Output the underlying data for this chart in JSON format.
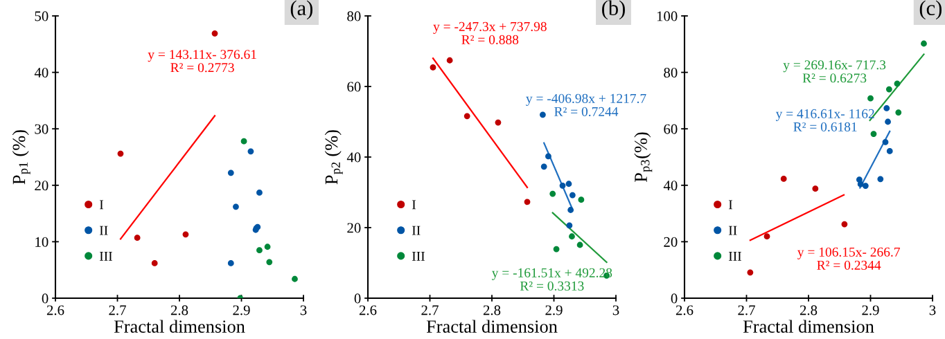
{
  "chart_data": [
    {
      "type": "scatter",
      "title": "(a)",
      "xlabel": "Fractal dimension",
      "ylabel": "P$_{p1}$ (%)",
      "xlim": [
        2.6,
        3
      ],
      "ylim": [
        0,
        50
      ],
      "xticks": [
        2.6,
        2.7,
        2.8,
        2.9,
        3
      ],
      "yticks": [
        0,
        10,
        20,
        30,
        40,
        50
      ],
      "legend": "bottom left",
      "grid": false,
      "series": [
        {
          "name": "I",
          "color": "#c00000",
          "x": [
            2.705,
            2.732,
            2.76,
            2.81,
            2.857
          ],
          "values": [
            25.6,
            10.7,
            6.2,
            11.3,
            46.9
          ]
        },
        {
          "name": "II",
          "color": "#0055a5",
          "x": [
            2.915,
            2.883,
            2.929,
            2.891,
            2.923,
            2.924,
            2.926,
            2.883
          ],
          "values": [
            26.0,
            22.2,
            18.7,
            16.2,
            12.1,
            12.4,
            12.6,
            6.2
          ]
        },
        {
          "name": "III",
          "color": "#00883a",
          "x": [
            2.904,
            2.942,
            2.929,
            2.945,
            2.986,
            2.898
          ],
          "values": [
            27.8,
            9.1,
            8.5,
            6.4,
            3.4,
            0
          ]
        },
        {
          "type": "line",
          "name": "y = 143.11x- 376.61\nR² = 0.2773",
          "color": "#ff0000",
          "x": [
            2.705,
            2.857
          ],
          "values": [
            10.5,
            32.3
          ]
        }
      ]
    },
    {
      "type": "scatter",
      "title": "(b)",
      "xlabel": "Fractal dimension",
      "ylabel": "P$_{p2}$ (%)",
      "xlim": [
        2.6,
        3
      ],
      "ylim": [
        0,
        80
      ],
      "xticks": [
        2.6,
        2.7,
        2.8,
        2.9,
        3
      ],
      "yticks": [
        0,
        20,
        40,
        60,
        80
      ],
      "legend": "bottom left",
      "grid": false,
      "series": [
        {
          "name": "I",
          "color": "#c00000",
          "x": [
            2.705,
            2.732,
            2.76,
            2.81,
            2.857
          ],
          "values": [
            65.4,
            67.4,
            51.6,
            49.8,
            27.3
          ]
        },
        {
          "name": "II",
          "color": "#0055a5",
          "x": [
            2.882,
            2.884,
            2.891,
            2.914,
            2.924,
            2.93,
            2.927,
            2.925
          ],
          "values": [
            52.0,
            37.3,
            40.2,
            31.9,
            32.4,
            29.2,
            25.0,
            20.6
          ]
        },
        {
          "name": "III",
          "color": "#00883a",
          "x": [
            2.898,
            2.944,
            2.929,
            2.942,
            2.904,
            2.985
          ],
          "values": [
            29.6,
            27.9,
            17.5,
            15.1,
            13.9,
            6.4
          ]
        },
        {
          "type": "line",
          "name": "y = -247.3x + 737.98\nR² = 0.888",
          "color": "#ff0000",
          "x": [
            2.705,
            2.857
          ],
          "values": [
            68.0,
            31.4
          ]
        },
        {
          "type": "line",
          "name": "y = -406.98x + 1217.7\nR² = 0.7244",
          "color": "#1f6fc0",
          "x": [
            2.884,
            2.929
          ],
          "values": [
            44.0,
            25.6
          ]
        },
        {
          "type": "line",
          "name": "y = -161.51x + 492.28\nR² = 0.3313",
          "color": "#1f9a3a",
          "x": [
            2.898,
            2.985
          ],
          "values": [
            24.2,
            10.2
          ]
        }
      ]
    },
    {
      "type": "scatter",
      "title": "(c)",
      "xlabel": "Fractal dimension",
      "ylabel": "P$_{p3}$(%)",
      "xlim": [
        2.6,
        3
      ],
      "ylim": [
        0,
        100
      ],
      "xticks": [
        2.6,
        2.7,
        2.8,
        2.9,
        3
      ],
      "yticks": [
        0,
        20,
        40,
        60,
        80,
        100
      ],
      "legend": "bottom left",
      "grid": false,
      "series": [
        {
          "name": "I",
          "color": "#c00000",
          "x": [
            2.706,
            2.733,
            2.76,
            2.811,
            2.858
          ],
          "values": [
            9.1,
            21.9,
            42.3,
            38.8,
            26.2
          ]
        },
        {
          "name": "II",
          "color": "#0055a5",
          "x": [
            2.926,
            2.928,
            2.924,
            2.931,
            2.916,
            2.882,
            2.884,
            2.892
          ],
          "values": [
            67.3,
            62.5,
            55.3,
            52.1,
            42.2,
            42.0,
            40.4,
            39.8
          ]
        },
        {
          "name": "III",
          "color": "#00883a",
          "x": [
            2.986,
            2.943,
            2.93,
            2.9,
            2.945,
            2.905
          ],
          "values": [
            90.2,
            76.0,
            74.0,
            70.8,
            65.8,
            58.2
          ]
        },
        {
          "type": "line",
          "name": "y = 106.15x- 266.7\nR² = 0.2344",
          "color": "#ff0000",
          "x": [
            2.706,
            2.857
          ],
          "values": [
            20.5,
            36.6
          ]
        },
        {
          "type": "line",
          "name": "y = 416.61x- 1162\nR² = 0.6181",
          "color": "#1f6fc0",
          "x": [
            2.883,
            2.931
          ],
          "values": [
            39.1,
            59.1
          ]
        },
        {
          "type": "line",
          "name": "y = 269.16x- 717.3\nR² = 0.6273",
          "color": "#1f9a3a",
          "x": [
            2.899,
            2.986
          ],
          "values": [
            63.0,
            86.4
          ]
        }
      ]
    }
  ]
}
